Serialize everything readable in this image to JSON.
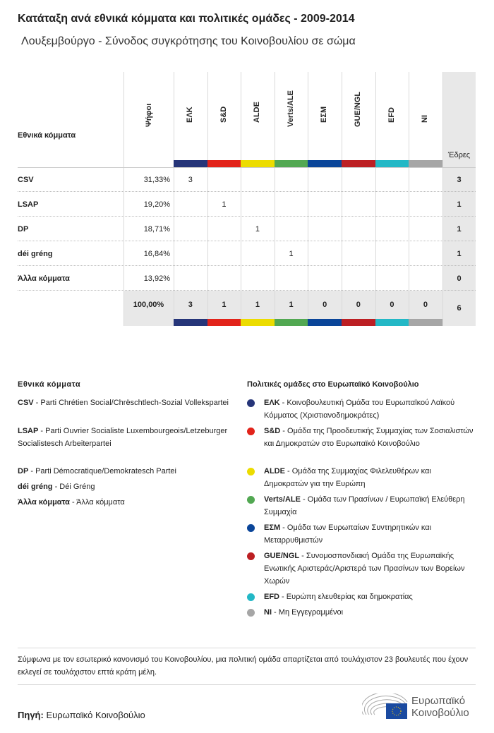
{
  "title": "Κατάταξη ανά εθνικά κόμματα και πολιτικές ομάδες - 2009-2014",
  "subtitle": "Λουξεμβούργο - Σύνοδος συγκρότησης του Κοινοβουλίου σε σώμα",
  "table": {
    "party_header": "Εθνικά κόμματα",
    "votes_header": "Ψήφοι",
    "seats_header": "Έδρες",
    "groups": [
      {
        "label": "ΕΛΚ",
        "color": "#263579"
      },
      {
        "label": "S&D",
        "color": "#e2231a"
      },
      {
        "label": "ALDE",
        "color": "#ecdc00"
      },
      {
        "label": "Verts/ALE",
        "color": "#52a852"
      },
      {
        "label": "ΕΣΜ",
        "color": "#0a4599"
      },
      {
        "label": "GUE/NGL",
        "color": "#bc1f23"
      },
      {
        "label": "EFD",
        "color": "#23b8c6"
      },
      {
        "label": "NI",
        "color": "#a6a6a6"
      }
    ],
    "rows": [
      {
        "party": "CSV",
        "votes": "31,33%",
        "seats_by_group": [
          "3",
          "",
          "",
          "",
          "",
          "",
          "",
          ""
        ],
        "seats": "3"
      },
      {
        "party": "LSAP",
        "votes": "19,20%",
        "seats_by_group": [
          "",
          "1",
          "",
          "",
          "",
          "",
          "",
          ""
        ],
        "seats": "1"
      },
      {
        "party": "DP",
        "votes": "18,71%",
        "seats_by_group": [
          "",
          "",
          "1",
          "",
          "",
          "",
          "",
          ""
        ],
        "seats": "1"
      },
      {
        "party": "déi gréng",
        "votes": "16,84%",
        "seats_by_group": [
          "",
          "",
          "",
          "1",
          "",
          "",
          "",
          ""
        ],
        "seats": "1"
      },
      {
        "party": "Άλλα κόμματα",
        "votes": "13,92%",
        "seats_by_group": [
          "",
          "",
          "",
          "",
          "",
          "",
          "",
          ""
        ],
        "seats": "0"
      }
    ],
    "total": {
      "votes": "100,00%",
      "seats_by_group": [
        "3",
        "1",
        "1",
        "1",
        "0",
        "0",
        "0",
        "0"
      ],
      "seats": "6"
    }
  },
  "legend_parties": {
    "title": "Εθνικά κόμματα",
    "items": [
      {
        "abbr": "CSV",
        "name": "Parti Chrétien Social/Chrëschtlech-Sozial Vollekspartei"
      },
      {
        "abbr": "LSAP",
        "name": "Parti Ouvrier Socialiste Luxembourgeois/Letzeburger Socialistesch Arbeiterpartei"
      },
      {
        "abbr": "DP",
        "name": "Parti Démocratique/Demokratesch Partei"
      },
      {
        "abbr": "déi gréng",
        "name": "Déi Gréng"
      },
      {
        "abbr": "Άλλα κόμματα",
        "name": "Άλλα κόμματα"
      }
    ]
  },
  "legend_groups": {
    "title": "Πολιτικές ομάδες στο Ευρωπαϊκό Κοινοβούλιο",
    "items": [
      {
        "abbr": "ΕΛΚ",
        "name": "Κοινοβουλευτική Ομάδα του Ευρωπαϊκού Λαϊκού Κόμματος (Χριστιανοδημοκράτες)",
        "color": "#263579"
      },
      {
        "abbr": "S&D",
        "name": "Ομάδα της Προοδευτικής Συμμαχίας των Σοσιαλιστών και Δημοκρατών στο Ευρωπαϊκό Κοινοβούλιο",
        "color": "#e2231a"
      },
      {
        "abbr": "ALDE",
        "name": "Ομάδα της Συμμαχίας Φιλελευθέρων και Δημοκρατών για την Ευρώπη",
        "color": "#ecdc00"
      },
      {
        "abbr": "Verts/ALE",
        "name": "Ομάδα των Πρασίνων / Ευρωπαϊκή Ελεύθερη Συμμαχία",
        "color": "#52a852"
      },
      {
        "abbr": "ΕΣΜ",
        "name": "Ομάδα των Ευρωπαίων Συντηρητικών και Μεταρρυθμιστών",
        "color": "#0a4599"
      },
      {
        "abbr": "GUE/NGL",
        "name": "Συνομοσπονδιακή Ομάδα της Ευρωπαϊκής Ενωτικής Αριστεράς/Αριστερά των Πρασίνων των Βορείων Χωρών",
        "color": "#bc1f23"
      },
      {
        "abbr": "EFD",
        "name": "Ευρώπη ελευθερίας και δημοκρατίας",
        "color": "#23b8c6"
      },
      {
        "abbr": "NI",
        "name": "Μη Εγγεγραμμένοι",
        "color": "#a6a6a6"
      }
    ]
  },
  "note": "Σύμφωνα με τον εσωτερικό κανονισμό του Κοινοβουλίου, μια πολιτική ομάδα απαρτίζεται από τουλάχιστον 23 βουλευτές που έχουν εκλεγεί σε τουλάχιστον επτά κράτη μέλη.",
  "source_label": "Πηγή:",
  "source": "Ευρωπαϊκό Κοινοβούλιο",
  "logo_text": "Ευρωπαϊκό Κοινοβούλιο"
}
